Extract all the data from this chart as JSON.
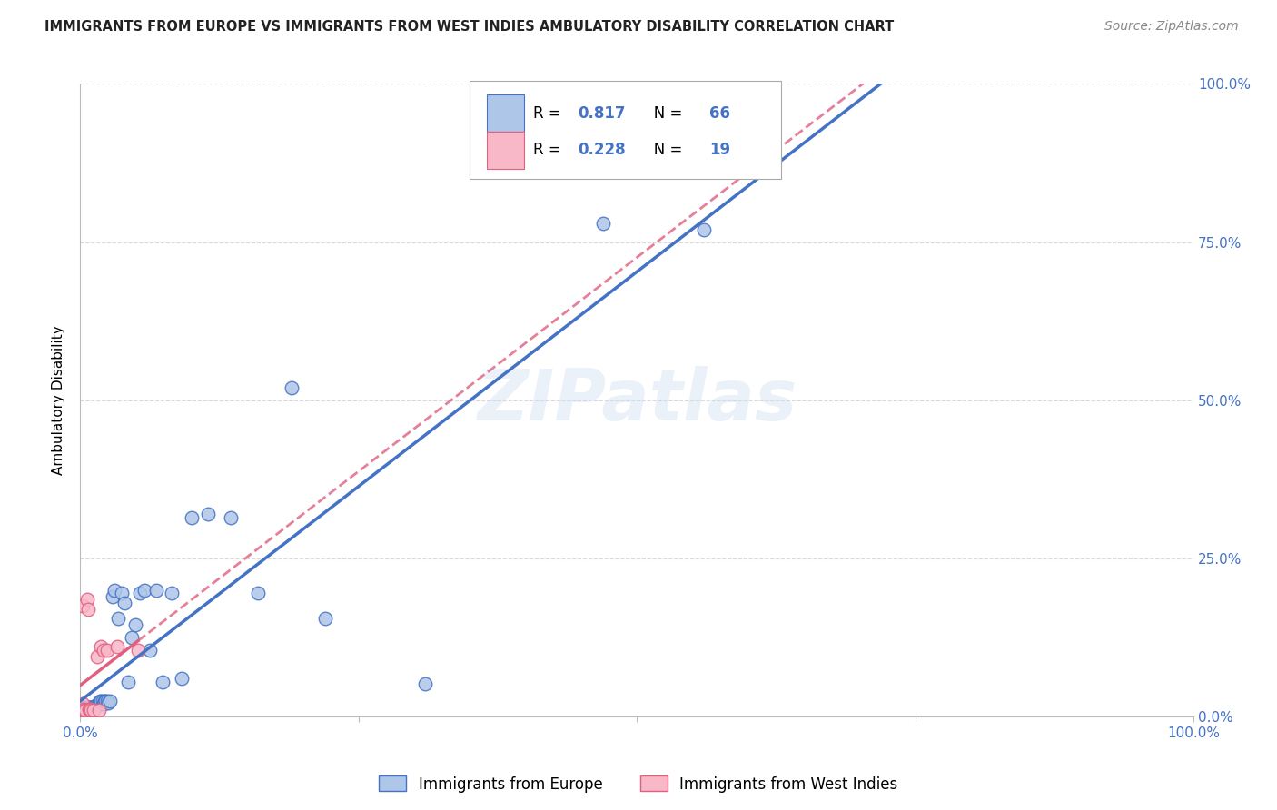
{
  "title": "IMMIGRANTS FROM EUROPE VS IMMIGRANTS FROM WEST INDIES AMBULATORY DISABILITY CORRELATION CHART",
  "source": "Source: ZipAtlas.com",
  "ylabel": "Ambulatory Disability",
  "ytick_labels": [
    "0.0%",
    "25.0%",
    "50.0%",
    "75.0%",
    "100.0%"
  ],
  "ytick_values": [
    0.0,
    0.25,
    0.5,
    0.75,
    1.0
  ],
  "legend_europe": "Immigrants from Europe",
  "legend_wi": "Immigrants from West Indies",
  "R_europe": "0.817",
  "N_europe": "66",
  "R_wi": "0.228",
  "N_wi": "19",
  "europe_color": "#aec6e8",
  "europe_line_color": "#4472c4",
  "wi_color": "#f9b8c8",
  "wi_line_color": "#e06080",
  "watermark": "ZIPatlas",
  "europe_x": [
    0.001,
    0.001,
    0.001,
    0.002,
    0.002,
    0.002,
    0.003,
    0.003,
    0.003,
    0.004,
    0.004,
    0.004,
    0.005,
    0.005,
    0.005,
    0.006,
    0.006,
    0.007,
    0.007,
    0.008,
    0.008,
    0.009,
    0.009,
    0.01,
    0.01,
    0.011,
    0.012,
    0.013,
    0.014,
    0.015,
    0.016,
    0.017,
    0.018,
    0.019,
    0.02,
    0.021,
    0.022,
    0.023,
    0.024,
    0.025,
    0.027,
    0.029,
    0.031,
    0.034,
    0.037,
    0.04,
    0.043,
    0.046,
    0.05,
    0.054,
    0.058,
    0.063,
    0.068,
    0.074,
    0.082,
    0.091,
    0.1,
    0.115,
    0.135,
    0.16,
    0.19,
    0.22,
    0.31,
    0.47,
    0.56,
    0.62
  ],
  "europe_y": [
    0.005,
    0.01,
    0.012,
    0.008,
    0.012,
    0.015,
    0.008,
    0.01,
    0.015,
    0.008,
    0.012,
    0.015,
    0.008,
    0.01,
    0.014,
    0.01,
    0.014,
    0.01,
    0.015,
    0.01,
    0.015,
    0.01,
    0.015,
    0.01,
    0.015,
    0.012,
    0.015,
    0.015,
    0.018,
    0.018,
    0.02,
    0.022,
    0.025,
    0.025,
    0.025,
    0.02,
    0.025,
    0.025,
    0.025,
    0.022,
    0.025,
    0.19,
    0.2,
    0.155,
    0.195,
    0.18,
    0.055,
    0.125,
    0.145,
    0.195,
    0.2,
    0.105,
    0.2,
    0.055,
    0.195,
    0.06,
    0.315,
    0.32,
    0.315,
    0.195,
    0.52,
    0.155,
    0.052,
    0.78,
    0.77,
    0.88
  ],
  "wi_x": [
    0.001,
    0.002,
    0.002,
    0.003,
    0.004,
    0.005,
    0.006,
    0.007,
    0.008,
    0.009,
    0.01,
    0.012,
    0.015,
    0.017,
    0.019,
    0.021,
    0.024,
    0.033,
    0.052
  ],
  "wi_y": [
    0.01,
    0.02,
    0.175,
    0.012,
    0.01,
    0.01,
    0.185,
    0.17,
    0.012,
    0.012,
    0.01,
    0.01,
    0.095,
    0.01,
    0.11,
    0.105,
    0.105,
    0.11,
    0.105
  ],
  "xlim": [
    0.0,
    1.0
  ],
  "ylim": [
    0.0,
    1.0
  ],
  "background": "#ffffff",
  "grid_color": "#d0d0d0",
  "title_color": "#222222",
  "source_color": "#888888",
  "axis_label_color": "#4472c4"
}
